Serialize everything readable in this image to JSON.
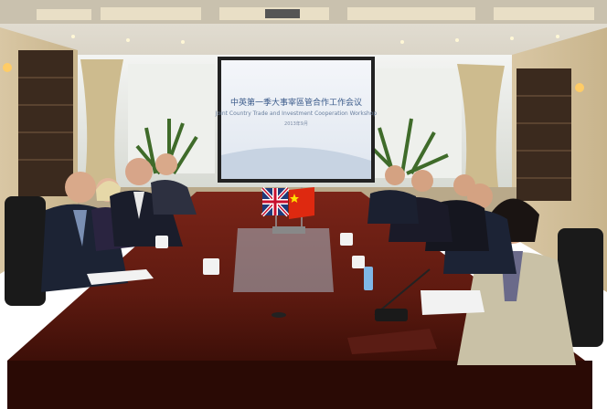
{
  "photo": {
    "subject": "bilateral meeting in a conference room",
    "screen": {
      "title": "中英第一季大事宰區管合作工作会议",
      "subtitle": "Joint Country Trade and Investment Cooperation Workshop",
      "date": "2013年9月"
    },
    "flags": [
      "united-kingdom",
      "china"
    ]
  }
}
